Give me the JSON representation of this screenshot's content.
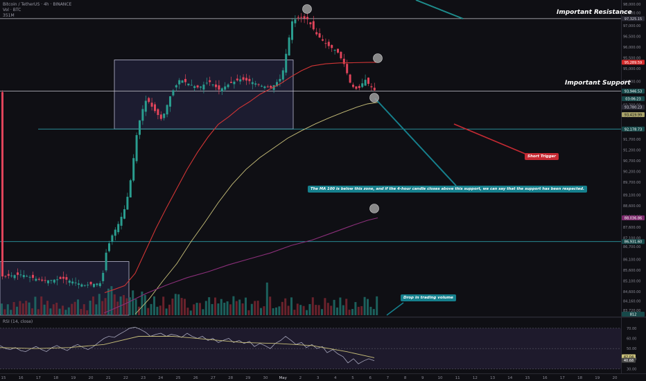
{
  "header": {
    "symbol": "Bitcoin / TetherUS · 4h · BINANCE",
    "vol": "Vol · BTC",
    "vol_value": "351M"
  },
  "annotations": {
    "resistance_label": "Important Resistance",
    "support_label": "Important Support",
    "short_trigger": "Short Trigger",
    "ma_note": "The MA 100 is below this zone, and if the 4-hour candle closes above this support, we can say that the support has been respected.",
    "volume_note": "Drop in trading volume"
  },
  "price_tags": [
    {
      "label": "97,325.15",
      "price": 97325,
      "bg": "#2a2a35",
      "fg": "#d8d8e0"
    },
    {
      "label": "95,289.59",
      "price": 95290,
      "bg": "#d42b2b",
      "fg": "#ffffff"
    },
    {
      "label": "93,946.53",
      "price": 93947,
      "bg": "#17494a",
      "fg": "#ffffff"
    },
    {
      "label": "03:06:23",
      "price": 93590,
      "bg": "#17494a",
      "fg": "#ffffff"
    },
    {
      "label": "93,780.23",
      "price": 93200,
      "bg": "#2a2a35",
      "fg": "#d8d8e0"
    },
    {
      "label": "93,419.99",
      "price": 92850,
      "bg": "#a9a36a",
      "fg": "#111111"
    },
    {
      "label": "92,178.73",
      "price": 92179,
      "bg": "#17494a",
      "fg": "#ffffff"
    },
    {
      "label": "88,036.86",
      "price": 88037,
      "bg": "#7c2a6c",
      "fg": "#ffffff"
    },
    {
      "label": "86,931.60",
      "price": 86932,
      "bg": "#17494a",
      "fg": "#ffffff"
    },
    {
      "label": "812",
      "price": 83550,
      "bg": "#17494a",
      "fg": "#ffffff"
    }
  ],
  "rsi_tags": [
    {
      "label": "42.04",
      "value": 42.0,
      "bg": "#c9c07a",
      "fg": "#111111"
    },
    {
      "label": "40.68",
      "value": 38.5,
      "bg": "#444444",
      "fg": "#ffffff"
    }
  ],
  "chart_data": {
    "type": "line",
    "title": "Bitcoin / TetherUS · 4h · BINANCE",
    "y_axis_ticks": [
      "98,000.00",
      "97,600.00",
      "97,000.00",
      "96,500.00",
      "96,000.00",
      "95,500.00",
      "95,000.00",
      "94,400.00",
      "93,900.00",
      "93,300.00",
      "92,800.00",
      "92,200.00",
      "91,700.00",
      "91,200.00",
      "90,700.00",
      "90,200.00",
      "89,700.00",
      "89,100.00",
      "88,600.00",
      "88,100.00",
      "87,600.00",
      "87,100.00",
      "86,700.00",
      "86,100.00",
      "85,600.00",
      "85,100.00",
      "84,600.00",
      "84,160.00",
      "83,720.00"
    ],
    "y_axis_values": [
      98000,
      97600,
      97000,
      96500,
      96000,
      95500,
      95000,
      94400,
      93900,
      93300,
      92800,
      92200,
      91700,
      91200,
      90700,
      90200,
      89700,
      89100,
      88600,
      88100,
      87600,
      87100,
      86700,
      86100,
      85600,
      85100,
      84600,
      84160,
      83720
    ],
    "x_axis_ticks": [
      "15",
      "16",
      "17",
      "18",
      "19",
      "20",
      "21",
      "22",
      "23",
      "24",
      "25",
      "26",
      "27",
      "28",
      "29",
      "30",
      "May",
      "2",
      "3",
      "4",
      "5",
      "6",
      "7",
      "8",
      "9",
      "10",
      "11",
      "12",
      "13",
      "14",
      "15",
      "16",
      "17",
      "18",
      "19",
      "20"
    ],
    "ylim": [
      83500,
      98000
    ],
    "series": [
      {
        "color": "#d03535",
        "values": [
          [
            151,
            84550
          ],
          [
            165,
            84700
          ],
          [
            180,
            84880
          ],
          [
            195,
            85450
          ],
          [
            210,
            86500
          ],
          [
            225,
            87550
          ],
          [
            240,
            88500
          ],
          [
            255,
            89400
          ],
          [
            270,
            90300
          ],
          [
            285,
            91100
          ],
          [
            300,
            91800
          ],
          [
            315,
            92400
          ],
          [
            330,
            92750
          ],
          [
            345,
            93150
          ],
          [
            360,
            93450
          ],
          [
            375,
            93800
          ],
          [
            390,
            94050
          ],
          [
            405,
            94300
          ],
          [
            420,
            94620
          ],
          [
            435,
            94900
          ],
          [
            450,
            95120
          ],
          [
            470,
            95220
          ],
          [
            490,
            95260
          ],
          [
            510,
            95270
          ],
          [
            530,
            95285
          ],
          [
            545,
            95290
          ]
        ]
      },
      {
        "color": "#c9c07a",
        "values": [
          [
            195,
            83550
          ],
          [
            215,
            84250
          ],
          [
            235,
            85100
          ],
          [
            255,
            85900
          ],
          [
            275,
            86900
          ],
          [
            295,
            87800
          ],
          [
            315,
            88750
          ],
          [
            335,
            89600
          ],
          [
            355,
            90300
          ],
          [
            375,
            90850
          ],
          [
            395,
            91300
          ],
          [
            415,
            91750
          ],
          [
            435,
            92100
          ],
          [
            455,
            92420
          ],
          [
            475,
            92700
          ],
          [
            495,
            92960
          ],
          [
            515,
            93200
          ],
          [
            530,
            93350
          ],
          [
            545,
            93420
          ]
        ]
      },
      {
        "color": "#8b2f7a",
        "values": [
          [
            150,
            83600
          ],
          [
            180,
            84020
          ],
          [
            210,
            84500
          ],
          [
            240,
            84900
          ],
          [
            270,
            85250
          ],
          [
            300,
            85520
          ],
          [
            330,
            85850
          ],
          [
            360,
            86130
          ],
          [
            390,
            86400
          ],
          [
            420,
            86750
          ],
          [
            450,
            87000
          ],
          [
            480,
            87350
          ],
          [
            510,
            87700
          ],
          [
            530,
            87920
          ],
          [
            545,
            88037
          ]
        ]
      }
    ],
    "levels": [
      {
        "price": 97325,
        "color": "#c8c8d0"
      },
      {
        "price": 93947,
        "color": "#c8c8d0"
      },
      {
        "price": 92179,
        "color": "#30b5c0"
      },
      {
        "price": 86932,
        "color": "#30b5c0"
      }
    ],
    "zones": [
      {
        "x0": 165,
        "x1": 423,
        "y0": 92180,
        "y1": 95400
      },
      {
        "x0": 0,
        "x1": 186,
        "y0": 83500,
        "y1": 86000
      }
    ],
    "rsi": {
      "label": "RSI (14, close)",
      "ticks": [
        "70.00",
        "60.00",
        "50.00",
        "40.00",
        "30.00"
      ],
      "tick_values": [
        70,
        60,
        50,
        40,
        30
      ],
      "ylim": [
        27,
        78
      ],
      "values": [
        [
          0,
          53
        ],
        [
          8,
          50
        ],
        [
          15,
          49
        ],
        [
          22,
          51
        ],
        [
          30,
          48
        ],
        [
          37,
          47
        ],
        [
          45,
          50
        ],
        [
          52,
          52
        ],
        [
          60,
          49
        ],
        [
          67,
          47
        ],
        [
          75,
          51
        ],
        [
          82,
          53
        ],
        [
          90,
          50
        ],
        [
          97,
          48
        ],
        [
          105,
          52
        ],
        [
          112,
          54
        ],
        [
          120,
          51
        ],
        [
          127,
          49
        ],
        [
          135,
          52
        ],
        [
          142,
          56
        ],
        [
          150,
          60
        ],
        [
          157,
          62
        ],
        [
          165,
          61
        ],
        [
          172,
          64
        ],
        [
          180,
          67
        ],
        [
          187,
          70
        ],
        [
          195,
          71
        ],
        [
          202,
          69
        ],
        [
          210,
          66
        ],
        [
          217,
          62
        ],
        [
          225,
          64
        ],
        [
          232,
          65
        ],
        [
          240,
          62
        ],
        [
          247,
          64
        ],
        [
          255,
          63
        ],
        [
          262,
          61
        ],
        [
          270,
          65
        ],
        [
          277,
          62
        ],
        [
          285,
          60
        ],
        [
          292,
          62
        ],
        [
          300,
          58
        ],
        [
          307,
          60
        ],
        [
          315,
          56
        ],
        [
          322,
          58
        ],
        [
          330,
          60
        ],
        [
          337,
          56
        ],
        [
          345,
          58
        ],
        [
          352,
          55
        ],
        [
          360,
          57
        ],
        [
          367,
          52
        ],
        [
          375,
          55
        ],
        [
          382,
          53
        ],
        [
          390,
          50
        ],
        [
          397,
          55
        ],
        [
          405,
          58
        ],
        [
          412,
          62
        ],
        [
          420,
          58
        ],
        [
          427,
          54
        ],
        [
          435,
          56
        ],
        [
          442,
          51
        ],
        [
          450,
          54
        ],
        [
          457,
          50
        ],
        [
          465,
          52
        ],
        [
          472,
          46
        ],
        [
          480,
          49
        ],
        [
          487,
          45
        ],
        [
          495,
          42
        ],
        [
          502,
          36
        ],
        [
          510,
          40
        ],
        [
          517,
          35
        ],
        [
          525,
          38
        ],
        [
          532,
          40
        ],
        [
          540,
          38
        ]
      ],
      "ma": [
        [
          0,
          51
        ],
        [
          50,
          50
        ],
        [
          100,
          51
        ],
        [
          150,
          54
        ],
        [
          200,
          62
        ],
        [
          250,
          62
        ],
        [
          300,
          59
        ],
        [
          350,
          56
        ],
        [
          400,
          55
        ],
        [
          450,
          53
        ],
        [
          500,
          47
        ],
        [
          540,
          41
        ]
      ]
    }
  }
}
